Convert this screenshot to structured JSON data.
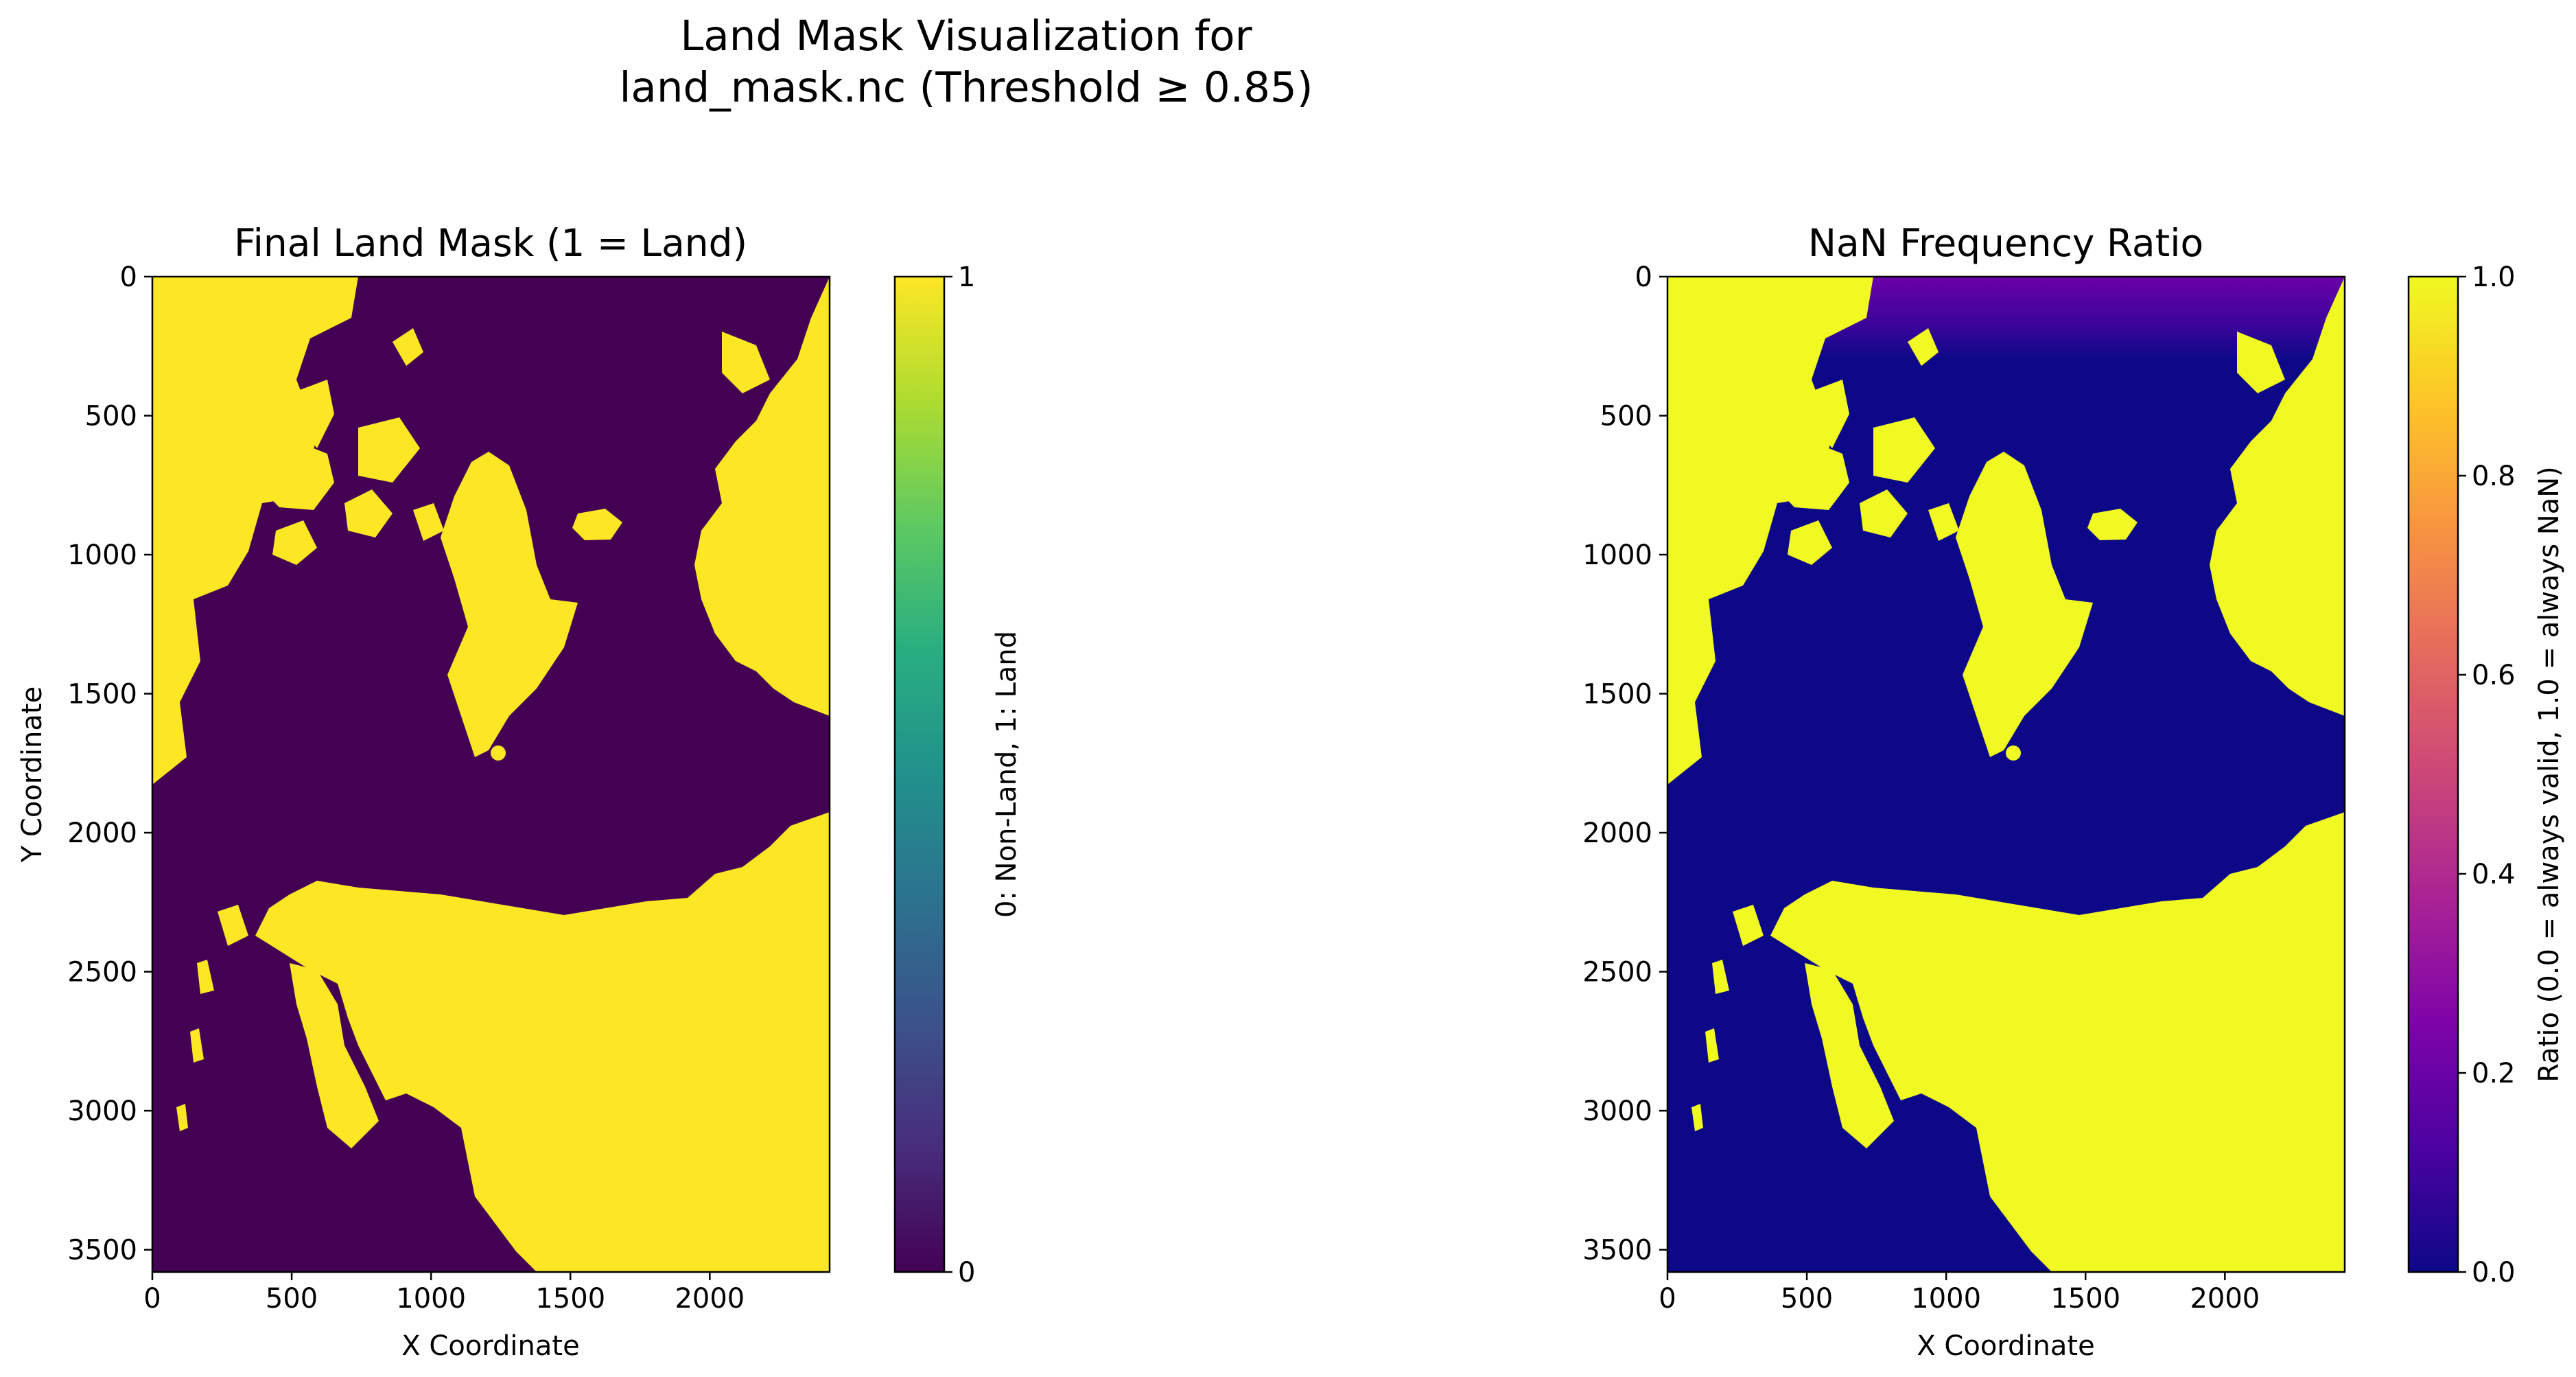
{
  "figure": {
    "suptitle_line1": "Land Mask Visualization for",
    "suptitle_line2": "land_mask.nc (Threshold ≥ 0.85)"
  },
  "chart_data": [
    {
      "type": "heatmap",
      "title": "Final Land Mask (1 = Land)",
      "xlabel": "X Coordinate",
      "ylabel": "Y Coordinate",
      "xlim": [
        0,
        2430
      ],
      "ylim": [
        3580,
        0
      ],
      "xticks": [
        0,
        500,
        1000,
        1500,
        2000
      ],
      "yticks": [
        0,
        500,
        1000,
        1500,
        2000,
        2500,
        3000,
        3500
      ],
      "colormap": "viridis",
      "colorbar": {
        "label": "0: Non-Land, 1: Land",
        "range": [
          0,
          1
        ],
        "ticks": [
          "0",
          "1"
        ]
      },
      "colors": {
        "land": "#fde725",
        "non_land": "#440154"
      }
    },
    {
      "type": "heatmap",
      "title": "NaN Frequency Ratio",
      "xlabel": "X Coordinate",
      "ylabel": "",
      "xlim": [
        0,
        2430
      ],
      "ylim": [
        3580,
        0
      ],
      "xticks": [
        0,
        500,
        1000,
        1500,
        2000
      ],
      "yticks": [
        0,
        500,
        1000,
        1500,
        2000,
        2500,
        3000,
        3500
      ],
      "colormap": "plasma",
      "colorbar": {
        "label": "Ratio (0.0 = always valid, 1.0 = always NaN)",
        "range": [
          0.0,
          1.0
        ],
        "ticks": [
          "0.0",
          "0.2",
          "0.4",
          "0.6",
          "0.8",
          "1.0"
        ]
      },
      "colors": {
        "land": "#f0f921",
        "non_land": "#0d0887",
        "edge_band": "#6a00a8"
      }
    }
  ]
}
